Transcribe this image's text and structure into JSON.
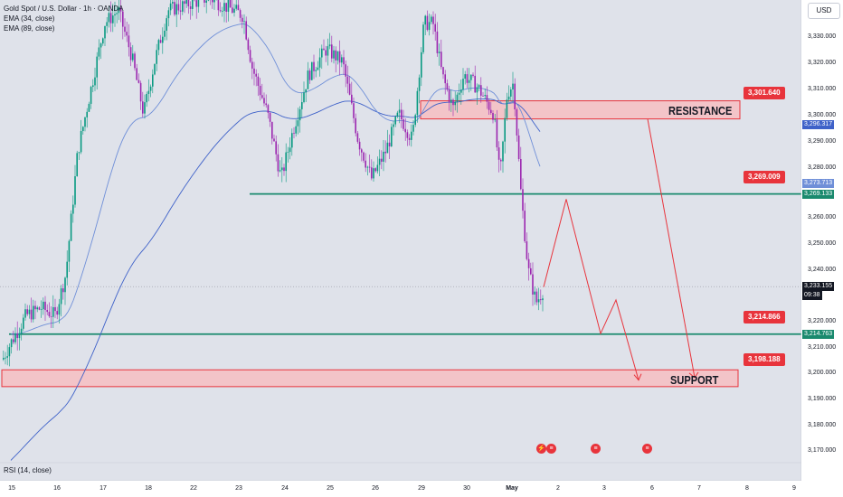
{
  "legend": {
    "symbol_line": "Gold Spot / U.S. Dollar · 1h · OANDA",
    "ema1": "EMA (34, close)",
    "ema2": "EMA (89, close)"
  },
  "rsi_label": "RSI (14, close)",
  "currency_button": "USD",
  "price_axis": {
    "ticks": [
      "3,330.000",
      "3,320.000",
      "3,310.000",
      "3,300.000",
      "3,290.000",
      "3,280.000",
      "3,260.000",
      "3,250.000",
      "3,240.000",
      "3,220.000",
      "3,210.000",
      "3,200.000",
      "3,190.000",
      "3,180.000",
      "3,170.000"
    ],
    "tag_ema_top": "3,296.317",
    "tag_ema_mid": "3,273.713",
    "tag_green_top": "3,269.133",
    "tag_last_price": "3,233.155",
    "tag_countdown": "09:38",
    "tag_green_bottom": "3,214.763"
  },
  "time_axis": {
    "ticks": [
      "15",
      "16",
      "17",
      "18",
      "22",
      "23",
      "24",
      "25",
      "26",
      "29",
      "30",
      "May",
      "2",
      "3",
      "6",
      "7",
      "8",
      "9"
    ]
  },
  "annotations": {
    "resistance_label": "RESISTANCE",
    "support_label": "SUPPORT",
    "callout_resistance": "3,301.640",
    "callout_green_top": "3,269.009",
    "callout_green_bottom": "3,214.866",
    "callout_support": "3,198.188"
  },
  "colors": {
    "background": "#dfe2ea",
    "candle_up": "#089981",
    "candle_down": "#9c27b0",
    "ema34": "#6f8fd8",
    "ema89": "#3f62c9",
    "zone_fill": "#f3c4c8",
    "zone_border": "#e8343c",
    "level_line": "#1a8a6e",
    "projection": "#e8343c"
  },
  "icons": [
    "flash-event-icon",
    "us-flag-event-icon",
    "us-flag-event-icon",
    "us-flag-event-icon"
  ]
}
